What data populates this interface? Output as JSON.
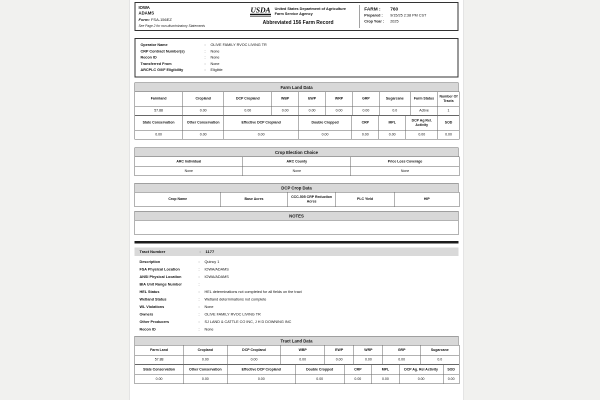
{
  "meta": {
    "colon": ":"
  },
  "header": {
    "state": "IOWA",
    "county": "ADAMS",
    "form_label": "Form:",
    "form_number": "FSA-156EZ",
    "note": "See Page 2 for non-discriminatory Statements",
    "usda_acronym": "USDA",
    "agency_line1": "United States Department of Agriculture",
    "agency_line2": "Farm Service Agency",
    "doc_title": "Abbreviated 156 Farm Record",
    "farm_label": "FARM :",
    "farm_number": "760",
    "prepared_label": "Prepared :",
    "prepared_value": "9/15/25  2:38 PM  CST",
    "crop_year_label": "Crop Year :",
    "crop_year_value": "2025"
  },
  "operator": {
    "fields": [
      {
        "label": "Operator Name",
        "value": "OLIVE FAMILY RVOC LIVING TR"
      },
      {
        "label": "CRP Contract Number(s)",
        "value": "None"
      },
      {
        "label": "Recon ID",
        "value": "None"
      },
      {
        "label": "Transferred From",
        "value": "None"
      },
      {
        "label": "ARCPLC G/I/F Eligibility",
        "value": "Eligible"
      }
    ]
  },
  "farm_land_data": {
    "title": "Farm Land Data",
    "table1": {
      "headers": [
        "Farmland",
        "Cropland",
        "DCP Cropland",
        "WBP",
        "EWP",
        "WRP",
        "GRP",
        "Sugarcane",
        "Farm Status",
        "Number Of Tracts"
      ],
      "values": [
        "57.88",
        "0.00",
        "0.00",
        "0.00",
        "0.00",
        "0.00",
        "0.00",
        "0.0",
        "Active",
        "1"
      ]
    },
    "table2": {
      "headers": [
        "State Conservation",
        "Other Conservation",
        "Effective DCP Cropland",
        "Double Cropped",
        "CRP",
        "MPL",
        "DCP Ag Rel. Activity",
        "SOD"
      ],
      "values": [
        "0.00",
        "0.00",
        "0.00",
        "0.00",
        "0.00",
        "0.00",
        "0.00",
        "0.00"
      ]
    }
  },
  "crop_election": {
    "title": "Crop Election Choice",
    "table": {
      "headers": [
        "ARC Individual",
        "ARC County",
        "Price Loss Coverage"
      ],
      "values": [
        "None",
        "None",
        "None"
      ]
    }
  },
  "dcp_crop_data": {
    "title": "DCP Crop Data",
    "table": {
      "headers": [
        "Crop Name",
        "Base Acres",
        "CCC-505 CRP Reduction Acres",
        "PLC Yield",
        "HIP"
      ],
      "values": []
    }
  },
  "notes": {
    "title": "NOTES"
  },
  "tract": {
    "number_label": "Tract Number",
    "number_value": "1177",
    "fields": [
      {
        "label": "Description",
        "value": "Quincy 1"
      },
      {
        "label": "FSA Physical Location",
        "value": "IOWA/ADAMS"
      },
      {
        "label": "ANSI Physical Location",
        "value": "IOWA/ADAMS"
      },
      {
        "label": "BIA Unit Range Number",
        "value": ""
      },
      {
        "label": "HEL Status",
        "value": "HEL determinations not completed for all fields on the tract"
      },
      {
        "label": "Wetland Status",
        "value": "Wetland determinations not complete"
      },
      {
        "label": "WL Violations",
        "value": "None"
      },
      {
        "label": "Owners",
        "value": "OLIVE FAMILY RVOC LIVING TR"
      },
      {
        "label": "Other Producers",
        "value": "SJ LAND & CATTLE CO INC, J H D DOWNING INC"
      },
      {
        "label": "Recon ID",
        "value": "None"
      }
    ]
  },
  "tract_land_data": {
    "title": "Tract Land Data",
    "table1": {
      "headers": [
        "Farm Land",
        "Cropland",
        "DCP Cropland",
        "WBP",
        "EWP",
        "WRP",
        "GRP",
        "Sugarcane"
      ],
      "values": [
        "57.88",
        "0.00",
        "0.00",
        "0.00",
        "0.00",
        "0.00",
        "0.00",
        "0.0"
      ]
    },
    "table2": {
      "headers": [
        "State Conservation",
        "Other Conservation",
        "Effective DCP Cropland",
        "Double Cropped",
        "CRP",
        "MPL",
        "DCP Ag. Rel Activity",
        "SOD"
      ],
      "values": [
        "0.00",
        "0.00",
        "0.00",
        "0.00",
        "0.00",
        "0.00",
        "0.00",
        "0.00"
      ]
    }
  }
}
